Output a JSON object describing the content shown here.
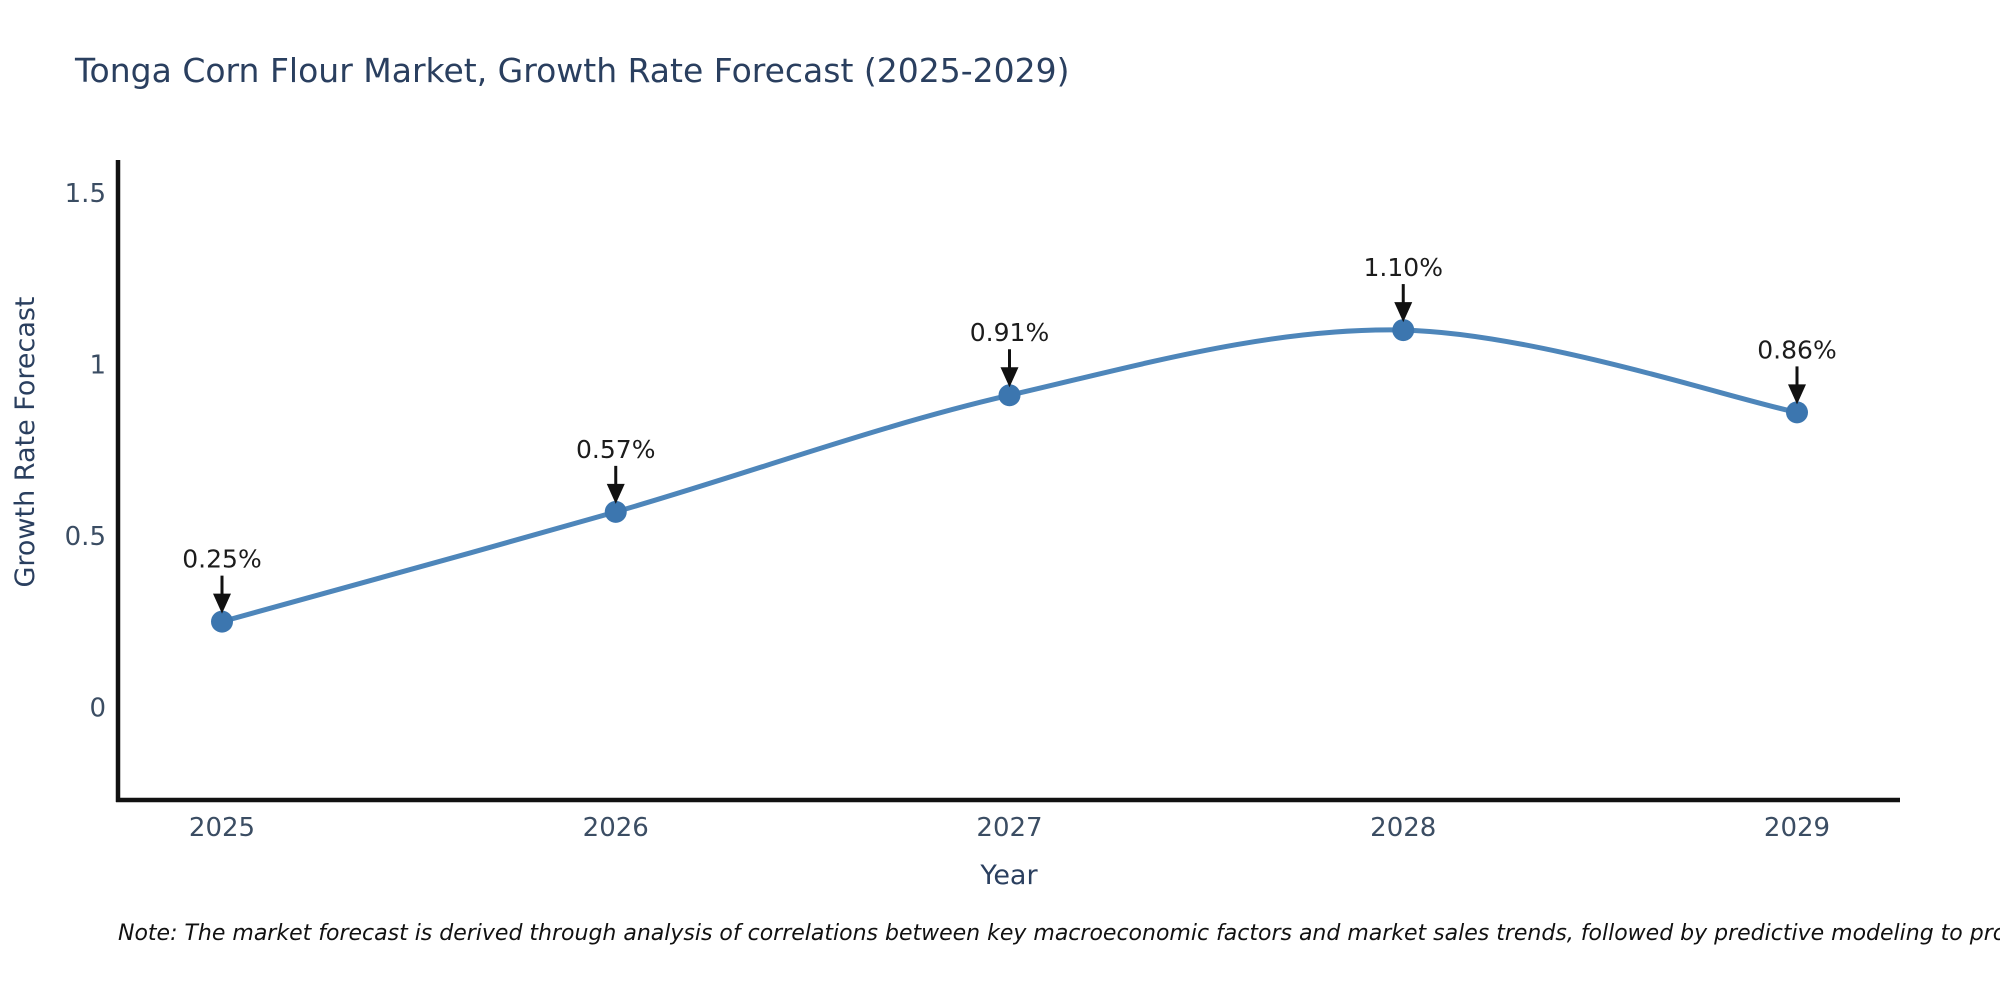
{
  "title": "Tonga Corn Flour Market, Growth Rate Forecast (2025-2029)",
  "note": "Note: The market forecast is derived through analysis of correlations between key macroeconomic factors and market sales trends, followed by predictive modeling to project future sales",
  "chart_data": {
    "type": "line",
    "title": "Tonga Corn Flour Market, Growth Rate Forecast (2025-2029)",
    "xlabel": "Year",
    "ylabel": "Growth Rate Forecast",
    "categories": [
      "2025",
      "2026",
      "2027",
      "2028",
      "2029"
    ],
    "series": [
      {
        "name": "Growth Rate Forecast",
        "values": [
          0.25,
          0.57,
          0.91,
          1.1,
          0.86
        ]
      }
    ],
    "point_labels": [
      "0.25%",
      "0.57%",
      "0.91%",
      "1.10%",
      "0.86%"
    ],
    "yticks": [
      0,
      0.5,
      1,
      1.5
    ],
    "ytick_labels": [
      "0",
      "0.5",
      "1",
      "1.5"
    ],
    "ylim": [
      -0.27,
      1.59
    ],
    "grid": false,
    "legend": false,
    "line_style": "spline",
    "annotation_arrows": true
  },
  "colors": {
    "line": "#4e86ba",
    "marker": "#3c76af",
    "axis_line": "#111111",
    "title_text": "#2a3f5f",
    "axis_title_text": "#2a3f5f",
    "tick_text": "#3b4d63",
    "annotation_text": "#1c1c1c",
    "arrow": "#111111",
    "note_text": "#111111",
    "background": "#ffffff"
  }
}
